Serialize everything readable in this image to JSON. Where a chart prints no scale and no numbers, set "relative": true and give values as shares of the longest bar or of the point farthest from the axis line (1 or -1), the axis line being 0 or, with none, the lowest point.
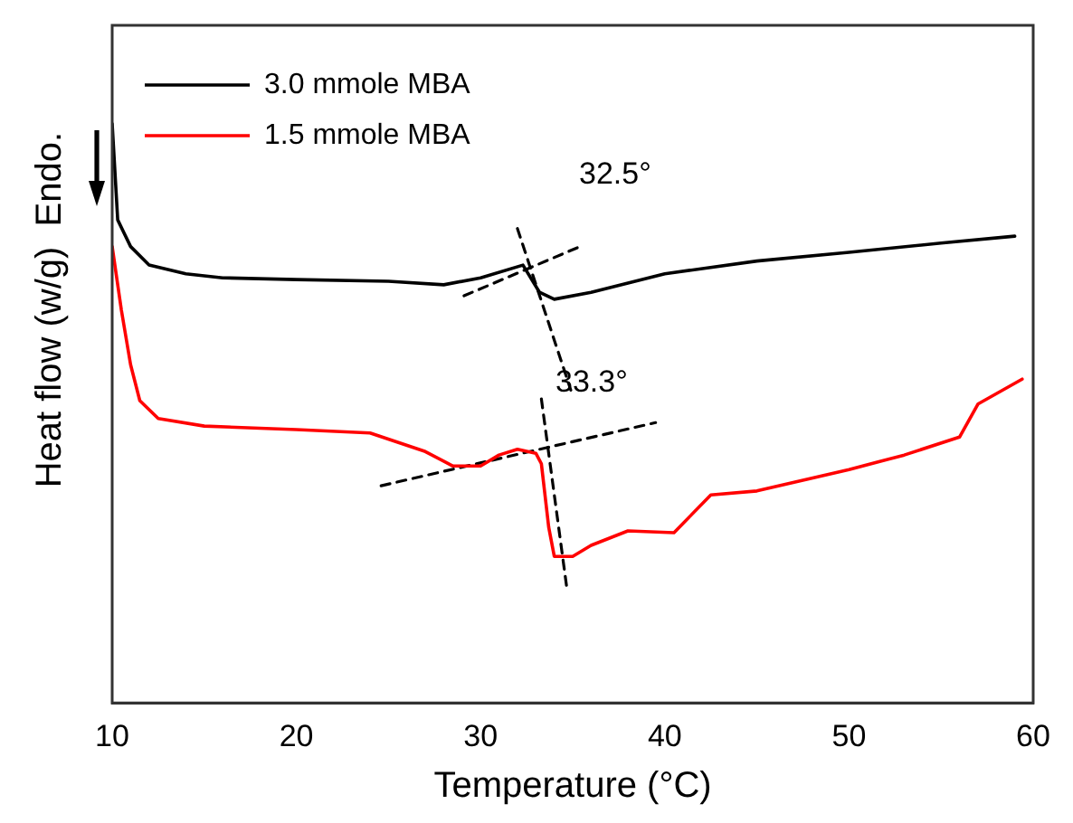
{
  "chart_data": {
    "type": "line",
    "xlabel": "Temperature (°C)",
    "ylabel": "Heat flow (w/g)  Endo.",
    "relative": true,
    "xlim": [
      10,
      60
    ],
    "xticks": [
      10,
      20,
      30,
      40,
      50,
      60
    ],
    "grid": false,
    "legend": "top left",
    "marker": "none",
    "series": [
      {
        "name": "3.0 mmole MBA",
        "color": "#000000",
        "x": [
          10,
          10.3,
          11,
          12,
          14,
          16,
          20,
          25,
          28,
          30,
          32.3,
          33.2,
          34,
          36,
          38,
          40,
          45,
          50,
          55,
          59
        ],
        "values": [
          1.0,
          0.834,
          0.788,
          0.756,
          0.741,
          0.734,
          0.731,
          0.728,
          0.722,
          0.734,
          0.756,
          0.709,
          0.697,
          0.709,
          0.725,
          0.741,
          0.763,
          0.778,
          0.794,
          0.806
        ]
      },
      {
        "name": "1.5 mmole MBA",
        "color": "#ff0000",
        "x": [
          10,
          10.5,
          11,
          11.5,
          12.5,
          15,
          20,
          24,
          27,
          28.5,
          30,
          31,
          32,
          33,
          33.3,
          33.7,
          34,
          35,
          36,
          38,
          40.5,
          42.5,
          45,
          50,
          53,
          56,
          57,
          59.4
        ],
        "values": [
          0.788,
          0.678,
          0.584,
          0.522,
          0.491,
          0.478,
          0.472,
          0.466,
          0.434,
          0.409,
          0.409,
          0.428,
          0.438,
          0.431,
          0.413,
          0.303,
          0.253,
          0.253,
          0.272,
          0.297,
          0.294,
          0.359,
          0.366,
          0.403,
          0.428,
          0.459,
          0.516,
          0.559
        ]
      },
      {
        "type": "line",
        "color": "#000000",
        "line_style": "dashed",
        "x": [
          29.1,
          35.4
        ],
        "values": [
          0.703,
          0.788
        ]
      },
      {
        "type": "line",
        "color": "#000000",
        "line_style": "dashed",
        "x": [
          32.0,
          34.9
        ],
        "values": [
          0.819,
          0.54
        ]
      },
      {
        "type": "line",
        "color": "#000000",
        "line_style": "dashed",
        "x": [
          24.6,
          39.5
        ],
        "values": [
          0.375,
          0.484
        ]
      },
      {
        "type": "line",
        "color": "#000000",
        "line_style": "dashed",
        "x": [
          33.3,
          34.7
        ],
        "values": [
          0.525,
          0.194
        ]
      }
    ],
    "annotations": [
      "32.5°",
      "33.3°"
    ]
  }
}
